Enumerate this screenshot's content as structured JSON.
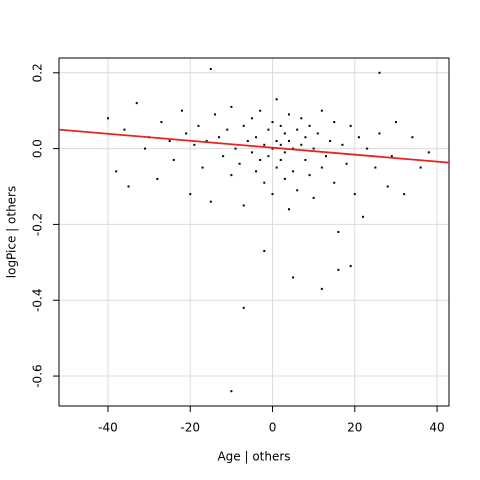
{
  "chart_data": {
    "type": "scatter",
    "xlabel": "Age | others",
    "ylabel": "logPice | others",
    "xlim": [
      -51.9,
      42.9
    ],
    "ylim": [
      -0.679,
      0.239
    ],
    "xticks": [
      -40,
      -20,
      0,
      20,
      40
    ],
    "yticks": [
      -0.6,
      -0.4,
      -0.2,
      {
        "value": 0,
        "label": "0.0"
      },
      0.2
    ],
    "grid": true,
    "color": "#000000",
    "x": [
      -40,
      -38,
      -36,
      -35,
      -33,
      -31,
      -30,
      -28,
      -27,
      -25,
      -24,
      -22,
      -21,
      -20,
      -19,
      -18,
      -17,
      -16,
      -15,
      -14,
      -13,
      -12,
      -11,
      -10,
      -10,
      -9,
      -8,
      -7,
      -7,
      -6,
      -5,
      -5,
      -4,
      -4,
      -3,
      -3,
      -2,
      -2,
      -1,
      -1,
      0,
      0,
      0,
      1,
      1,
      1,
      2,
      2,
      2,
      3,
      3,
      3,
      4,
      4,
      4,
      5,
      5,
      6,
      6,
      7,
      7,
      8,
      8,
      9,
      9,
      10,
      10,
      11,
      12,
      12,
      13,
      14,
      15,
      15,
      16,
      17,
      18,
      19,
      20,
      21,
      22,
      23,
      25,
      26,
      28,
      29,
      30,
      32,
      34,
      36,
      38,
      -15,
      -10,
      -7,
      5,
      12,
      16,
      19,
      -2,
      26
    ],
    "y": [
      0.08,
      -0.06,
      0.05,
      -0.1,
      0.12,
      0.0,
      0.03,
      -0.08,
      0.07,
      0.02,
      -0.03,
      0.1,
      0.04,
      -0.12,
      0.01,
      0.06,
      -0.05,
      0.02,
      -0.14,
      0.09,
      0.03,
      -0.02,
      0.05,
      -0.07,
      0.11,
      0.0,
      -0.04,
      0.06,
      -0.15,
      0.02,
      0.08,
      -0.01,
      -0.06,
      0.03,
      0.1,
      -0.03,
      0.01,
      -0.09,
      0.05,
      -0.02,
      0.0,
      0.07,
      -0.12,
      0.02,
      -0.05,
      0.13,
      0.01,
      -0.03,
      0.06,
      -0.08,
      0.04,
      -0.01,
      0.02,
      -0.16,
      0.09,
      0.0,
      -0.06,
      0.05,
      -0.11,
      0.01,
      0.08,
      -0.03,
      0.03,
      -0.07,
      0.06,
      0.0,
      -0.13,
      0.04,
      -0.05,
      0.1,
      -0.02,
      0.02,
      -0.09,
      0.07,
      -0.22,
      0.01,
      -0.04,
      0.06,
      -0.12,
      0.03,
      -0.18,
      0.0,
      -0.05,
      0.04,
      -0.1,
      -0.02,
      0.07,
      -0.12,
      0.03,
      -0.05,
      -0.01,
      0.21,
      -0.64,
      -0.42,
      -0.34,
      -0.37,
      -0.32,
      -0.31,
      -0.27,
      0.2
    ],
    "fit_line": {
      "color": "#e8231f",
      "x": [
        -51.9,
        42.9
      ],
      "y": [
        0.05,
        -0.037
      ]
    }
  }
}
